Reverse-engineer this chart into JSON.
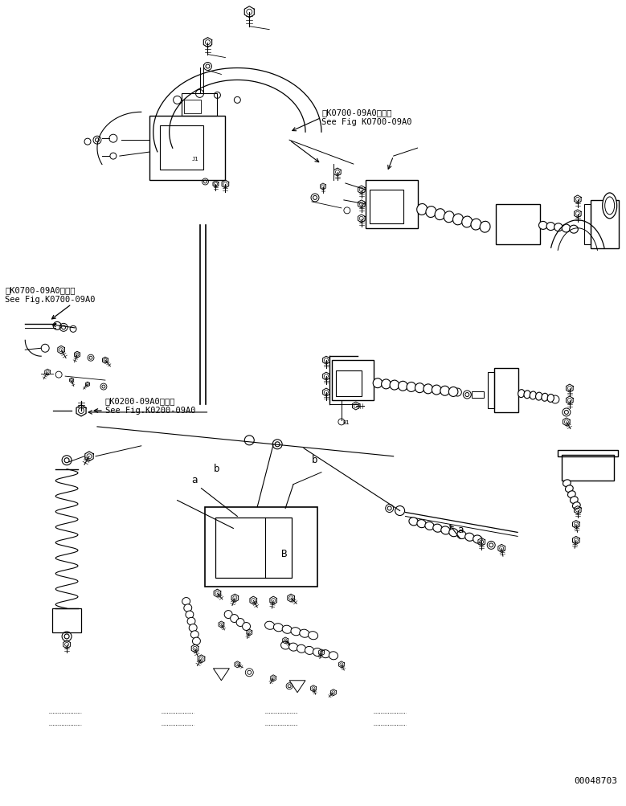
{
  "background_color": "#ffffff",
  "line_color": "#000000",
  "figure_width": 7.79,
  "figure_height": 10.04,
  "dpi": 100,
  "part_number": "00048703",
  "label_k0700_top": "第K0700-09A0図参照\nSee Fig KO700-09A0",
  "label_k0700_left": "第K0700-09A0図参照\nSee Fig.K0700-09A0",
  "label_k0200": "第K0200-09A0図参照\nSee Fig.K0200-09A0",
  "label_a1": "a",
  "label_b1": "b",
  "label_b2": "b",
  "label_a2": "a"
}
